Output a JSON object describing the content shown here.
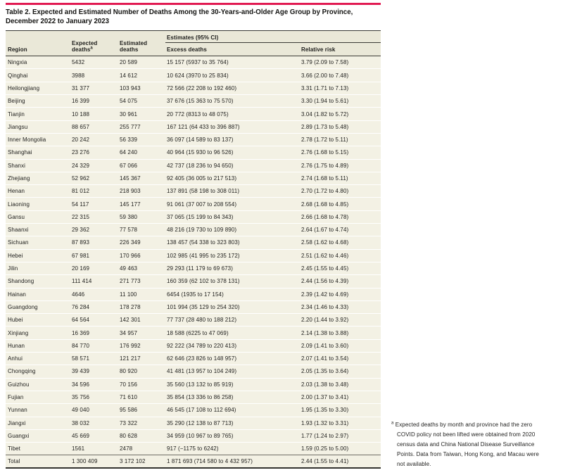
{
  "colors": {
    "accent_rule": "#e11a52",
    "header_background": "#eae8d8",
    "row_background": "#f3f1e4",
    "dark_rule": "#3a3a36"
  },
  "table": {
    "title": "Table 2. Expected and Estimated Number of Deaths Among the 30-Years-and-Older Age Group by Province, December 2022 to January 2023",
    "columns": {
      "region": "Region",
      "expected": "Expected deaths",
      "expected_sup": "a",
      "estimated": "Estimated deaths",
      "estimates_group": "Estimates (95% CI)",
      "excess": "Excess deaths",
      "relative_risk": "Relative risk"
    },
    "rows": [
      {
        "region": "Ningxia",
        "expected": "5432",
        "estimated": "20 589",
        "excess": "15 157 (5937 to 35 764)",
        "rr": "3.79 (2.09 to 7.58)"
      },
      {
        "region": "Qinghai",
        "expected": "3988",
        "estimated": "14 612",
        "excess": "10 624 (3970 to 25 834)",
        "rr": "3.66 (2.00 to 7.48)"
      },
      {
        "region": "Heilongjiang",
        "expected": "31 377",
        "estimated": "103 943",
        "excess": "72 566 (22 208 to 192 460)",
        "rr": "3.31 (1.71 to 7.13)"
      },
      {
        "region": "Beijing",
        "expected": "16 399",
        "estimated": "54 075",
        "excess": "37 676 (15 363 to 75 570)",
        "rr": "3.30 (1.94 to 5.61)"
      },
      {
        "region": "Tianjin",
        "expected": "10 188",
        "estimated": "30 961",
        "excess": "20 772 (8313 to 48 075)",
        "rr": "3.04 (1.82 to 5.72)"
      },
      {
        "region": "Jiangsu",
        "expected": "88 657",
        "estimated": "255 777",
        "excess": "167 121 (64 433 to 396 887)",
        "rr": "2.89 (1.73 to 5.48)"
      },
      {
        "region": "Inner Mongolia",
        "expected": "20 242",
        "estimated": "56 339",
        "excess": "36 097 (14 589 to 83 137)",
        "rr": "2.78 (1.72 to 5.11)"
      },
      {
        "region": "Shanghai",
        "expected": "23 276",
        "estimated": "64 240",
        "excess": "40 964 (15 930 to 96 526)",
        "rr": "2.76 (1.68 to 5.15)"
      },
      {
        "region": "Shanxi",
        "expected": "24 329",
        "estimated": "67 066",
        "excess": "42 737 (18 236 to 94 650)",
        "rr": "2.76 (1.75 to 4.89)"
      },
      {
        "region": "Zhejiang",
        "expected": "52 962",
        "estimated": "145 367",
        "excess": "92 405 (36 005 to 217 513)",
        "rr": "2.74 (1.68 to 5.11)"
      },
      {
        "region": "Henan",
        "expected": "81 012",
        "estimated": "218 903",
        "excess": "137 891 (58 198 to 308 011)",
        "rr": "2.70 (1.72 to 4.80)"
      },
      {
        "region": "Liaoning",
        "expected": "54 117",
        "estimated": "145 177",
        "excess": "91 061 (37 007 to 208 554)",
        "rr": "2.68 (1.68 to 4.85)"
      },
      {
        "region": "Gansu",
        "expected": "22 315",
        "estimated": "59 380",
        "excess": "37 065 (15 199 to 84 343)",
        "rr": "2.66 (1.68 to 4.78)"
      },
      {
        "region": "Shaanxi",
        "expected": "29 362",
        "estimated": "77 578",
        "excess": "48 216 (19 730 to 109 890)",
        "rr": "2.64 (1.67 to 4.74)"
      },
      {
        "region": "Sichuan",
        "expected": "87 893",
        "estimated": "226 349",
        "excess": "138 457 (54 338 to 323 803)",
        "rr": "2.58 (1.62 to 4.68)"
      },
      {
        "region": "Hebei",
        "expected": "67 981",
        "estimated": "170 966",
        "excess": "102 985 (41 995 to 235 172)",
        "rr": "2.51 (1.62 to 4.46)"
      },
      {
        "region": "Jilin",
        "expected": "20 169",
        "estimated": "49 463",
        "excess": "29 293 (11 179 to 69 673)",
        "rr": "2.45 (1.55 to 4.45)"
      },
      {
        "region": "Shandong",
        "expected": "111 414",
        "estimated": "271 773",
        "excess": "160 359 (62 102 to 378 131)",
        "rr": "2.44 (1.56 to 4.39)"
      },
      {
        "region": "Hainan",
        "expected": "4646",
        "estimated": "11 100",
        "excess": "6454 (1935 to 17 154)",
        "rr": "2.39 (1.42 to 4.69)"
      },
      {
        "region": "Guangdong",
        "expected": "76 284",
        "estimated": "178 278",
        "excess": "101 994 (35 129 to 254 320)",
        "rr": "2.34 (1.46 to 4.33)"
      },
      {
        "region": "Hubei",
        "expected": "64 564",
        "estimated": "142 301",
        "excess": "77 737 (28 480 to 188 212)",
        "rr": "2.20 (1.44 to 3.92)"
      },
      {
        "region": "Xinjiang",
        "expected": "16 369",
        "estimated": "34 957",
        "excess": "18 588 (6225 to 47 069)",
        "rr": "2.14 (1.38 to 3.88)"
      },
      {
        "region": "Hunan",
        "expected": "84 770",
        "estimated": "176 992",
        "excess": "92 222 (34 789 to 220 413)",
        "rr": "2.09 (1.41 to 3.60)"
      },
      {
        "region": "Anhui",
        "expected": "58 571",
        "estimated": "121 217",
        "excess": "62 646 (23 826 to 148 957)",
        "rr": "2.07 (1.41 to 3.54)"
      },
      {
        "region": "Chongqing",
        "expected": "39 439",
        "estimated": "80 920",
        "excess": "41 481 (13 957 to 104 249)",
        "rr": "2.05 (1.35 to 3.64)"
      },
      {
        "region": "Guizhou",
        "expected": "34 596",
        "estimated": "70 156",
        "excess": "35 560 (13 132 to 85 919)",
        "rr": "2.03 (1.38 to 3.48)"
      },
      {
        "region": "Fujian",
        "expected": "35 756",
        "estimated": "71 610",
        "excess": "35 854 (13 336 to 86 258)",
        "rr": "2.00 (1.37 to 3.41)"
      },
      {
        "region": "Yunnan",
        "expected": "49 040",
        "estimated": "95 586",
        "excess": "46 545 (17 108 to 112 694)",
        "rr": "1.95 (1.35 to 3.30)"
      },
      {
        "region": "Jiangxi",
        "expected": "38 032",
        "estimated": "73 322",
        "excess": "35 290 (12 138 to 87 713)",
        "rr": "1.93 (1.32 to 3.31)"
      },
      {
        "region": "Guangxi",
        "expected": "45 669",
        "estimated": "80 628",
        "excess": "34 959 (10 967 to 89 765)",
        "rr": "1.77 (1.24 to 2.97)"
      },
      {
        "region": "Tibet",
        "expected": "1561",
        "estimated": "2478",
        "excess": "917 (−1175 to 6242)",
        "rr": "1.59 (0.25 to 5.00)"
      }
    ],
    "total_row": {
      "region": "Total",
      "expected": "1 300 409",
      "estimated": "3 172 102",
      "excess": "1 871 693 (714 580 to 4 432 957)",
      "rr": "2.44 (1.55 to 4.41)"
    }
  },
  "footnote": {
    "marker": "a",
    "text": "Expected deaths by month and province had the zero COVID policy not been lifted were obtained from 2020 census data and China National Disease Surveillance Points. Data from Taiwan, Hong Kong, and Macau were not available."
  }
}
